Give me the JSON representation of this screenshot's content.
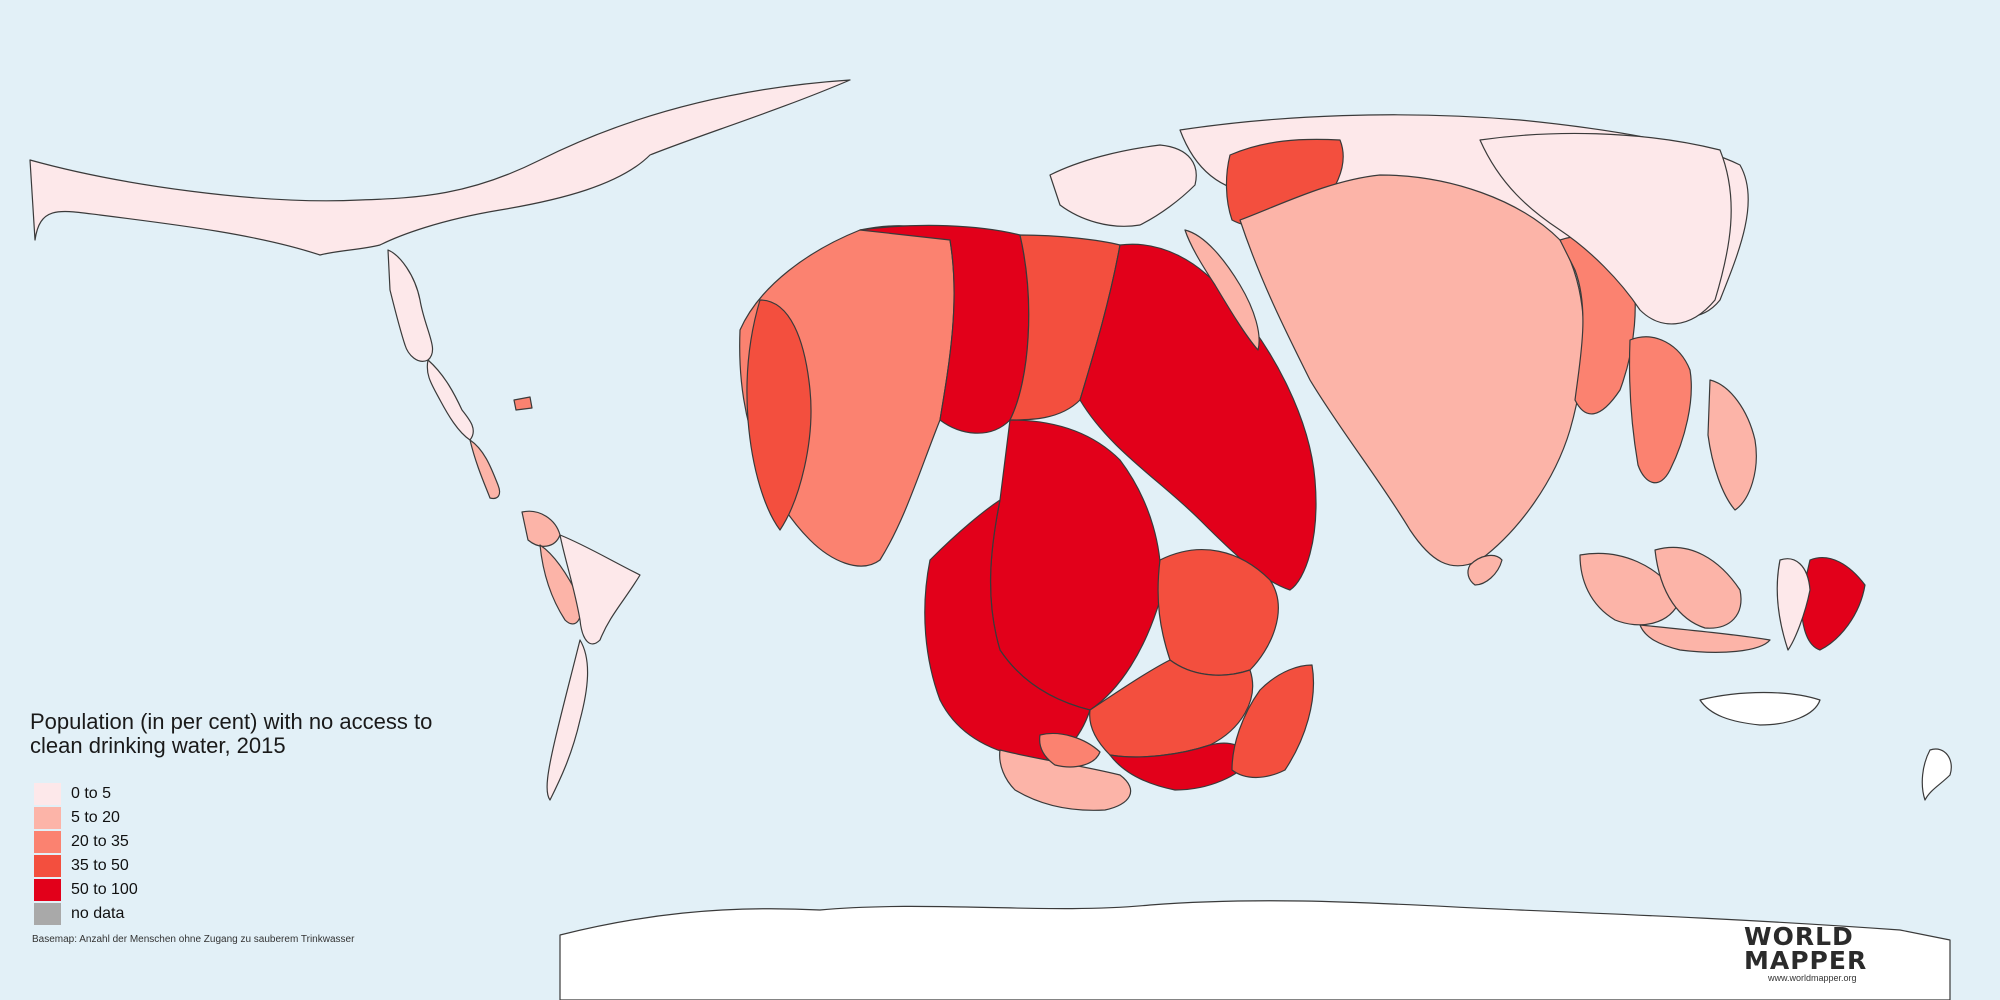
{
  "title_line1": "Population (in per cent) with no access to",
  "title_line2": "clean drinking water, 2015",
  "legend": [
    {
      "label": "0 to 5",
      "color": "#fde8ea"
    },
    {
      "label": "5 to 20",
      "color": "#fcb4a8"
    },
    {
      "label": "20 to 35",
      "color": "#fb8270"
    },
    {
      "label": "35 to 50",
      "color": "#f34f3e"
    },
    {
      "label": "50 to 100",
      "color": "#e2001a"
    },
    {
      "label": "no data",
      "color": "#a9a9a9"
    }
  ],
  "basemap_note": "Basemap: Anzahl der Menschen ohne Zugang zu sauberem Trinkwasser",
  "logo": {
    "line1": "WORLD",
    "line2": "MAPPER",
    "url": "www.worldmapper.org"
  },
  "colors": {
    "ocean": "#e2f0f7",
    "antarctica": "#ffffff"
  }
}
